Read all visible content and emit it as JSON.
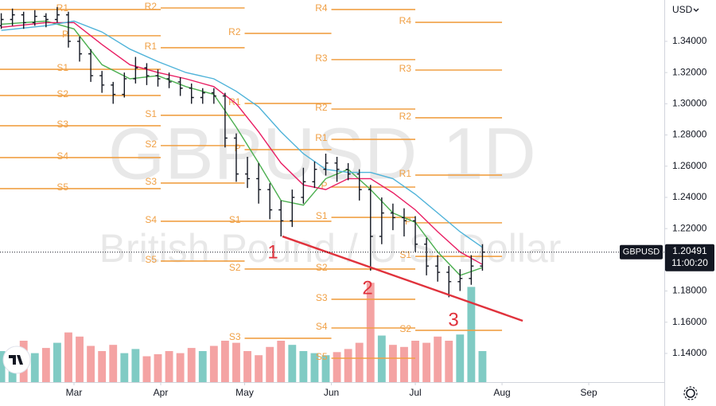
{
  "chart_data": {
    "type": "ohlc",
    "symbol": "GBPUSD",
    "interval": "1D",
    "description": "British Pound / U.S. Dollar",
    "currency": "USD",
    "last_price": 1.20491,
    "countdown": "11:00:20",
    "xlim": [
      33.55,
      271.0
    ],
    "xticks": [
      {
        "value": 60,
        "label": "Mar"
      },
      {
        "value": 91,
        "label": "Apr"
      },
      {
        "value": 121,
        "label": "May"
      },
      {
        "value": 152,
        "label": "Jun"
      },
      {
        "value": 182,
        "label": "Jul"
      },
      {
        "value": 213,
        "label": "Aug"
      },
      {
        "value": 244,
        "label": "Sep"
      }
    ],
    "ylim": [
      1.1216,
      1.3665
    ],
    "yticks": [
      {
        "value": 1.14,
        "label": "1.14000"
      },
      {
        "value": 1.16,
        "label": "1.16000"
      },
      {
        "value": 1.18,
        "label": "1.18000"
      },
      {
        "value": 1.2,
        "label": "1.20000"
      },
      {
        "value": 1.22,
        "label": "1.22000"
      },
      {
        "value": 1.24,
        "label": "1.24000"
      },
      {
        "value": 1.26,
        "label": "1.26000"
      },
      {
        "value": 1.28,
        "label": "1.28000"
      },
      {
        "value": 1.3,
        "label": "1.30000"
      },
      {
        "value": 1.32,
        "label": "1.32000"
      },
      {
        "value": 1.34,
        "label": "1.34000"
      }
    ],
    "bar_color": "#131722",
    "x": [
      34,
      38,
      42,
      46,
      50,
      54,
      58,
      62,
      66,
      70,
      74,
      78,
      82,
      86,
      90,
      94,
      98,
      102,
      106,
      110,
      114,
      118,
      122,
      126,
      130,
      134,
      138,
      142,
      146,
      150,
      154,
      158,
      162,
      166,
      170,
      174,
      178,
      182,
      186,
      190,
      194,
      198,
      202,
      206
    ],
    "ohlc": [
      [
        1.35,
        1.358,
        1.348,
        1.354
      ],
      [
        1.354,
        1.361,
        1.35,
        1.357
      ],
      [
        1.357,
        1.359,
        1.348,
        1.352
      ],
      [
        1.352,
        1.36,
        1.35,
        1.356
      ],
      [
        1.356,
        1.358,
        1.349,
        1.354
      ],
      [
        1.354,
        1.362,
        1.352,
        1.357
      ],
      [
        1.357,
        1.359,
        1.336,
        1.34
      ],
      [
        1.34,
        1.343,
        1.327,
        1.332
      ],
      [
        1.332,
        1.335,
        1.314,
        1.318
      ],
      [
        1.318,
        1.321,
        1.307,
        1.312
      ],
      [
        1.312,
        1.314,
        1.3,
        1.306
      ],
      [
        1.306,
        1.32,
        1.304,
        1.316
      ],
      [
        1.316,
        1.33,
        1.313,
        1.323
      ],
      [
        1.323,
        1.326,
        1.312,
        1.318
      ],
      [
        1.318,
        1.322,
        1.311,
        1.316
      ],
      [
        1.316,
        1.32,
        1.31,
        1.314
      ],
      [
        1.314,
        1.317,
        1.305,
        1.31
      ],
      [
        1.31,
        1.313,
        1.3,
        1.304
      ],
      [
        1.304,
        1.31,
        1.3,
        1.307
      ],
      [
        1.307,
        1.31,
        1.3,
        1.305
      ],
      [
        1.305,
        1.307,
        1.272,
        1.278
      ],
      [
        1.278,
        1.281,
        1.25,
        1.255
      ],
      [
        1.255,
        1.266,
        1.246,
        1.252
      ],
      [
        1.252,
        1.262,
        1.236,
        1.245
      ],
      [
        1.245,
        1.249,
        1.226,
        1.232
      ],
      [
        1.232,
        1.238,
        1.215,
        1.225
      ],
      [
        1.225,
        1.245,
        1.221,
        1.24
      ],
      [
        1.24,
        1.259,
        1.236,
        1.25
      ],
      [
        1.25,
        1.263,
        1.246,
        1.258
      ],
      [
        1.258,
        1.268,
        1.254,
        1.262
      ],
      [
        1.262,
        1.266,
        1.25,
        1.258
      ],
      [
        1.258,
        1.262,
        1.251,
        1.255
      ],
      [
        1.255,
        1.258,
        1.238,
        1.245
      ],
      [
        1.245,
        1.248,
        1.193,
        1.215
      ],
      [
        1.215,
        1.24,
        1.21,
        1.23
      ],
      [
        1.23,
        1.236,
        1.219,
        1.227
      ],
      [
        1.227,
        1.233,
        1.215,
        1.225
      ],
      [
        1.225,
        1.228,
        1.205,
        1.21
      ],
      [
        1.21,
        1.214,
        1.19,
        1.196
      ],
      [
        1.196,
        1.203,
        1.186,
        1.192
      ],
      [
        1.192,
        1.196,
        1.176,
        1.186
      ],
      [
        1.186,
        1.194,
        1.18,
        1.188
      ],
      [
        1.188,
        1.203,
        1.184,
        1.196
      ],
      [
        1.196,
        1.21,
        1.193,
        1.20491
      ]
    ],
    "volume": [
      30,
      26,
      40,
      28,
      33,
      38,
      48,
      44,
      35,
      30,
      36,
      28,
      32,
      25,
      27,
      30,
      28,
      33,
      30,
      35,
      40,
      38,
      30,
      26,
      34,
      40,
      36,
      30,
      28,
      26,
      29,
      32,
      38,
      96,
      45,
      36,
      34,
      40,
      38,
      44,
      40,
      46,
      92,
      30
    ],
    "vlim": [
      0,
      100
    ],
    "up_color": "#80cbc4",
    "down_color": "#f4a3a3",
    "ma_x": [
      34,
      50,
      60,
      70,
      80,
      90,
      100,
      110,
      118,
      126,
      134,
      142,
      150,
      158,
      166,
      174,
      182,
      190,
      198,
      206
    ],
    "moving_averages": [
      {
        "color": "#4caf50",
        "values": [
          1.351,
          1.353,
          1.348,
          1.325,
          1.316,
          1.318,
          1.311,
          1.306,
          1.285,
          1.262,
          1.238,
          1.235,
          1.252,
          1.258,
          1.245,
          1.23,
          1.224,
          1.205,
          1.19,
          1.195
        ]
      },
      {
        "color": "#e91e63",
        "values": [
          1.349,
          1.352,
          1.352,
          1.338,
          1.325,
          1.32,
          1.316,
          1.311,
          1.3,
          1.282,
          1.262,
          1.248,
          1.245,
          1.252,
          1.252,
          1.243,
          1.232,
          1.218,
          1.205,
          1.197
        ]
      },
      {
        "color": "#4fb3d9",
        "values": [
          1.347,
          1.35,
          1.353,
          1.346,
          1.335,
          1.327,
          1.32,
          1.316,
          1.308,
          1.298,
          1.282,
          1.268,
          1.258,
          1.256,
          1.256,
          1.252,
          1.242,
          1.23,
          1.218,
          1.208
        ]
      }
    ],
    "pivot_color": "#f0a045",
    "pivots": [
      {
        "start": 32,
        "end": 91,
        "levels": [
          {
            "label": "R1",
            "value": 1.3604
          },
          {
            "label": "P",
            "value": 1.3436
          },
          {
            "label": "S1",
            "value": 1.3221
          },
          {
            "label": "S2",
            "value": 1.3053
          },
          {
            "label": "S3",
            "value": 1.2859
          },
          {
            "label": "S4",
            "value": 1.2655
          },
          {
            "label": "S5",
            "value": 1.2456
          }
        ]
      },
      {
        "start": 91,
        "end": 121,
        "levels": [
          {
            "label": "R2",
            "value": 1.3614
          },
          {
            "label": "R1",
            "value": 1.3359
          },
          {
            "label": "S1",
            "value": 1.2926
          },
          {
            "label": "S2",
            "value": 1.2732
          },
          {
            "label": "S3",
            "value": 1.2492
          },
          {
            "label": "S4",
            "value": 1.2247
          },
          {
            "label": "S5",
            "value": 1.1992
          }
        ]
      },
      {
        "start": 121,
        "end": 152,
        "levels": [
          {
            "label": "R2",
            "value": 1.3451
          },
          {
            "label": "R1",
            "value": 1.3002
          },
          {
            "label": "P",
            "value": 1.2706
          },
          {
            "label": "S1",
            "value": 1.2247
          },
          {
            "label": "S2",
            "value": 1.1941
          },
          {
            "label": "S3",
            "value": 1.1497
          }
        ]
      },
      {
        "start": 152,
        "end": 182,
        "levels": [
          {
            "label": "R4",
            "value": 1.3604
          },
          {
            "label": "R3",
            "value": 1.3283
          },
          {
            "label": "R2",
            "value": 1.2966
          },
          {
            "label": "R1",
            "value": 1.2772
          },
          {
            "label": "P",
            "value": 1.2466
          },
          {
            "label": "S1",
            "value": 1.2272
          },
          {
            "label": "S2",
            "value": 1.1941
          },
          {
            "label": "S3",
            "value": 1.1747
          },
          {
            "label": "S4",
            "value": 1.1563
          },
          {
            "label": "S5",
            "value": 1.1369
          }
        ]
      },
      {
        "start": 182,
        "end": 213,
        "levels": [
          {
            "label": "R4",
            "value": 1.3522
          },
          {
            "label": "R3",
            "value": 1.3216
          },
          {
            "label": "R2",
            "value": 1.291
          },
          {
            "label": "R1",
            "value": 1.2543
          },
          {
            "label": "P",
            "value": 1.2237
          },
          {
            "label": "S1",
            "value": 1.2022
          },
          {
            "label": "S2",
            "value": 1.1548
          }
        ]
      }
    ],
    "trendline": {
      "color": "#e0323c",
      "x": [
        134.5,
        220.4
      ],
      "y": [
        1.215,
        1.1609
      ]
    },
    "annotations": [
      "1",
      "2",
      "3"
    ]
  }
}
